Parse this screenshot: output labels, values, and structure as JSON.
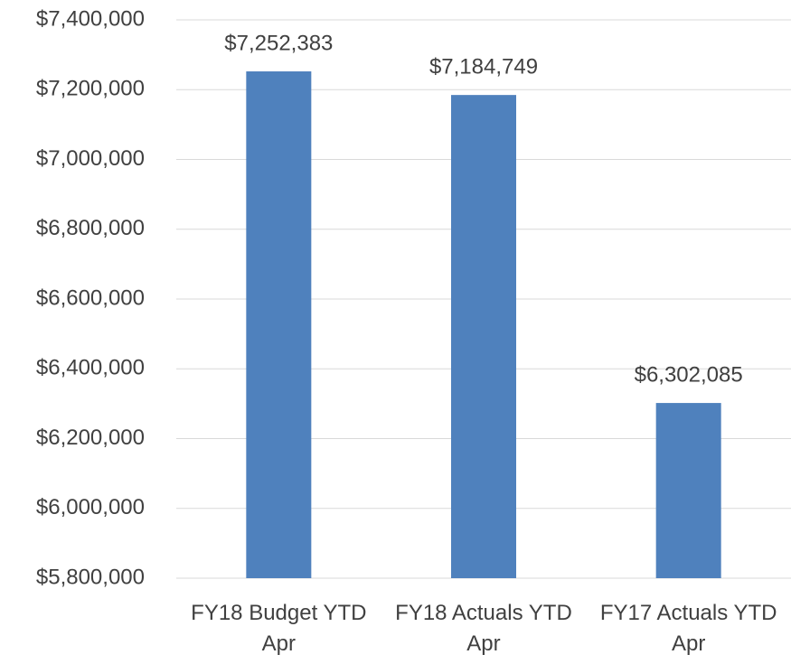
{
  "chart_data": {
    "type": "bar",
    "categories": [
      "FY18 Budget YTD Apr",
      "FY18 Actuals YTD Apr",
      "FY17 Actuals YTD Apr"
    ],
    "values": [
      7252383,
      7184749,
      6302085
    ],
    "value_labels": [
      "$7,252,383",
      "$7,184,749",
      "$6,302,085"
    ],
    "color": "#4f81bd",
    "ylim": [
      5800000,
      7400000
    ],
    "yticks": [
      {
        "value": 5800000,
        "label": "$5,800,000"
      },
      {
        "value": 6000000,
        "label": "$6,000,000"
      },
      {
        "value": 6200000,
        "label": "$6,200,000"
      },
      {
        "value": 6400000,
        "label": "$6,400,000"
      },
      {
        "value": 6600000,
        "label": "$6,600,000"
      },
      {
        "value": 6800000,
        "label": "$6,800,000"
      },
      {
        "value": 7000000,
        "label": "$7,000,000"
      },
      {
        "value": 7200000,
        "label": "$7,200,000"
      },
      {
        "value": 7400000,
        "label": "$7,400,000"
      }
    ],
    "grid": true
  }
}
